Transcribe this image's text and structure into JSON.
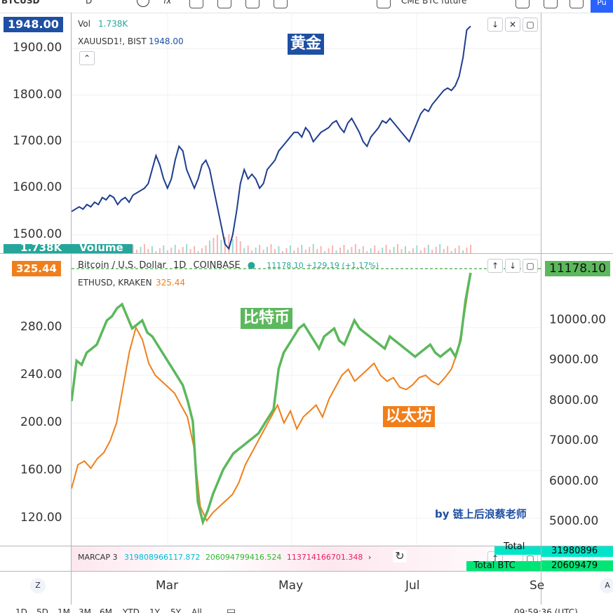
{
  "toolbar": {
    "symbol": "BTCUSD",
    "interval": "D",
    "fx_label": "fx",
    "compare_label": "CME BTC future",
    "publish_label": "Pu"
  },
  "top_pane": {
    "last_price": "1948.00",
    "vol_label": "Vol",
    "vol_value": "1.738K",
    "symbol_line": "XAUUSD1!, BIST",
    "symbol_price": "1948.00",
    "volume_badge_value": "1.738K",
    "volume_badge_label": "Volume",
    "annotation": "黄金",
    "ticks": [
      "1900.00",
      "1800.00",
      "1700.00",
      "1600.00",
      "1500.00"
    ],
    "line_color": "#1e3d8f"
  },
  "main_pane": {
    "title": "Bitcoin / U.S. Dollar",
    "interval": "1D",
    "exchange": "COINBASE",
    "ohlc_change": "11178.10 +129.19 (+1.17%)",
    "eth_line": "ETHUSD, KRAKEN",
    "eth_price": "325.44",
    "left_badge": "325.44",
    "right_badge": "11178.10",
    "left_ticks": [
      "280.00",
      "240.00",
      "200.00",
      "160.00",
      "120.00"
    ],
    "right_ticks": [
      "10000.00",
      "9000.00",
      "8000.00",
      "7000.00",
      "6000.00",
      "5000.00"
    ],
    "btc_annotation": "比特币",
    "eth_annotation": "以太坊",
    "credit": "by 链上后浪蔡老师",
    "btc_color": "#5cb85c",
    "eth_color": "#f07f1b"
  },
  "marcap_pane": {
    "label": "MARCAP 3",
    "v1": "319808966117.872",
    "v2": "206094799416.524",
    "v3": "113714166701.348",
    "right_total": "Total",
    "right_total2": "Total BTC",
    "right_val1": "31980896",
    "right_val2": "20609479"
  },
  "time_axis": {
    "labels": [
      "Mar",
      "May",
      "Jul",
      "Se"
    ],
    "left_btn": "Z",
    "right_btn": "A"
  },
  "bottom_bar": {
    "ranges": [
      "1D",
      "5D",
      "1M",
      "3M",
      "6M",
      "YTD",
      "1Y",
      "5Y",
      "All"
    ],
    "time": "09:59:36 (UTC)"
  },
  "chart_data": [
    {
      "type": "line",
      "series": [
        {
          "name": "XAUUSD1!",
          "values": [
            1550,
            1555,
            1560,
            1555,
            1565,
            1560,
            1570,
            1565,
            1580,
            1575,
            1585,
            1580,
            1565,
            1575,
            1580,
            1570,
            1585,
            1590,
            1595,
            1600,
            1610,
            1640,
            1670,
            1650,
            1620,
            1600,
            1620,
            1660,
            1690,
            1680,
            1640,
            1620,
            1600,
            1620,
            1650,
            1660,
            1640,
            1600,
            1560,
            1520,
            1480,
            1470,
            1500,
            1550,
            1610,
            1640,
            1620,
            1630,
            1620,
            1600,
            1610,
            1640,
            1650,
            1660,
            1680,
            1690,
            1700,
            1710,
            1720,
            1720,
            1710,
            1730,
            1720,
            1700,
            1710,
            1720,
            1725,
            1730,
            1740,
            1745,
            1730,
            1720,
            1740,
            1750,
            1735,
            1720,
            1700,
            1690,
            1710,
            1720,
            1730,
            1745,
            1740,
            1750,
            1740,
            1730,
            1720,
            1710,
            1700,
            1720,
            1740,
            1760,
            1770,
            1765,
            1780,
            1790,
            1800,
            1810,
            1815,
            1810,
            1820,
            1840,
            1880,
            1940,
            1948
          ]
        }
      ],
      "ylim": [
        1480,
        1950
      ]
    },
    {
      "type": "line",
      "series": [
        {
          "name": "BTCUSD",
          "values": [
            8000,
            9000,
            8900,
            9200,
            9300,
            9400,
            9700,
            10000,
            10100,
            10300,
            10400,
            10100,
            9800,
            9900,
            10000,
            9700,
            9600,
            9400,
            9200,
            9000,
            8800,
            8600,
            8400,
            8000,
            7500,
            5500,
            5000,
            5300,
            5700,
            6000,
            6300,
            6500,
            6700,
            6800,
            6900,
            7000,
            7100,
            7200,
            7400,
            7600,
            7800,
            8800,
            9200,
            9400,
            9600,
            9800,
            9900,
            9700,
            9500,
            9300,
            9600,
            9700,
            9800,
            9500,
            9400,
            9700,
            10000,
            9800,
            9700,
            9600,
            9500,
            9400,
            9300,
            9600,
            9500,
            9400,
            9300,
            9200,
            9100,
            9200,
            9300,
            9400,
            9200,
            9100,
            9200,
            9300,
            9100,
            9500,
            10500,
            11178
          ]
        },
        {
          "name": "ETHUSD",
          "values": [
            145,
            165,
            168,
            162,
            170,
            175,
            185,
            200,
            230,
            260,
            280,
            270,
            250,
            240,
            235,
            230,
            225,
            215,
            205,
            180,
            130,
            118,
            125,
            130,
            135,
            140,
            150,
            165,
            175,
            185,
            195,
            205,
            215,
            200,
            210,
            195,
            205,
            210,
            215,
            205,
            220,
            230,
            240,
            245,
            235,
            240,
            245,
            250,
            240,
            235,
            238,
            230,
            228,
            232,
            238,
            240,
            235,
            232,
            238,
            245,
            260,
            290,
            325
          ]
        }
      ],
      "ylim_left": [
        110,
        330
      ],
      "ylim_right": [
        4800,
        11300
      ]
    }
  ]
}
